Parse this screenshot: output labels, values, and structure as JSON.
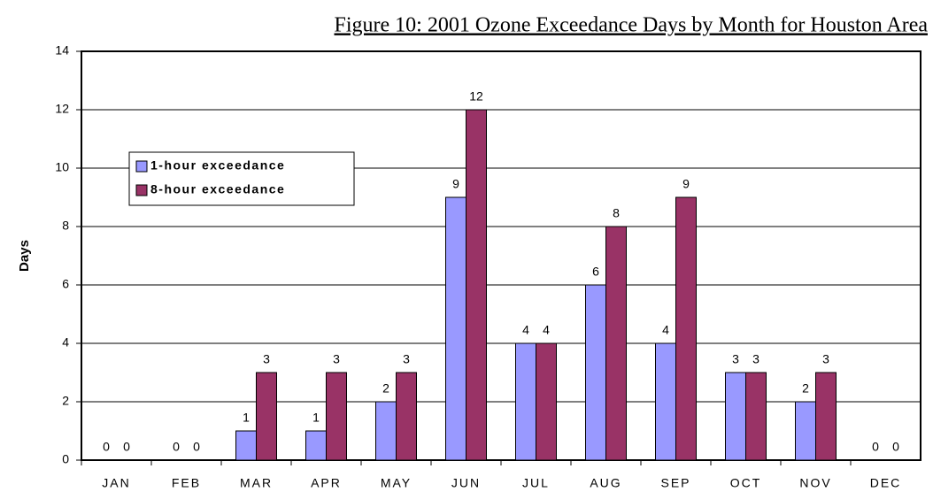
{
  "chart_data": {
    "type": "bar",
    "title": "Figure 10: 2001 Ozone Exceedance Days by Month for Houston Area",
    "ylabel": "Days",
    "categories": [
      "JAN",
      "FEB",
      "MAR",
      "APR",
      "MAY",
      "JUN",
      "JUL",
      "AUG",
      "SEP",
      "OCT",
      "NOV",
      "DEC"
    ],
    "series": [
      {
        "name": "1-hour exceedance",
        "color": "#9999ff",
        "values": [
          0,
          0,
          1,
          1,
          2,
          9,
          4,
          6,
          4,
          3,
          2,
          0
        ]
      },
      {
        "name": "8-hour exceedance",
        "color": "#993366",
        "values": [
          0,
          0,
          3,
          3,
          3,
          12,
          4,
          8,
          9,
          3,
          3,
          0
        ]
      }
    ],
    "ylim": [
      0,
      14
    ],
    "yticks": [
      0,
      2,
      4,
      6,
      8,
      10,
      12,
      14
    ],
    "grid": true,
    "legend": "upper left"
  }
}
